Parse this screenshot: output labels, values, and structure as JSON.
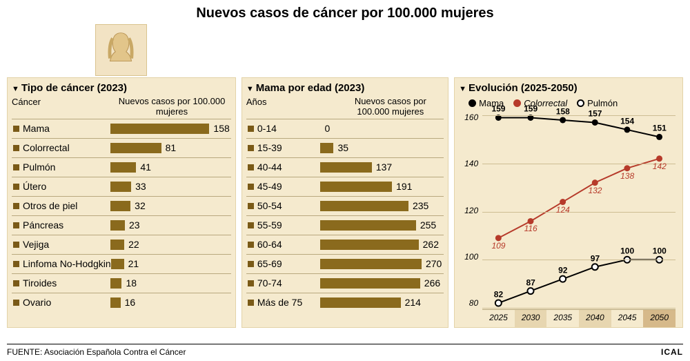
{
  "title": "Nuevos casos de cáncer por 100.000 mujeres",
  "colors": {
    "panel_bg": "#f5eace",
    "panel_border": "#e3d3a8",
    "row_border": "#b8a87e",
    "bar": "#8a6a1d",
    "bullet": "#7a5a17",
    "grid": "#cdbd93",
    "series_mama": "#000000",
    "series_colorrectal": "#b63a2a",
    "series_pulmon_border": "#000000",
    "series_pulmon_fill": "#ffffff"
  },
  "panel1": {
    "title": "Tipo de cáncer (2023)",
    "col_label": "Cáncer",
    "col_value": "Nuevos casos por 100.000 mujeres",
    "max": 158,
    "rows": [
      {
        "label": "Mama",
        "value": 158
      },
      {
        "label": "Colorrectal",
        "value": 81
      },
      {
        "label": "Pulmón",
        "value": 41
      },
      {
        "label": "Útero",
        "value": 33
      },
      {
        "label": "Otros de piel",
        "value": 32
      },
      {
        "label": "Páncreas",
        "value": 23
      },
      {
        "label": "Vejiga",
        "value": 22
      },
      {
        "label": "Linfoma No-Hodgkin",
        "value": 21
      },
      {
        "label": "Tiroides",
        "value": 18
      },
      {
        "label": "Ovario",
        "value": 16
      }
    ]
  },
  "panel2": {
    "title": "Mama por edad (2023)",
    "col_label": "Años",
    "col_value": "Nuevos casos por 100.000 mujeres",
    "max": 270,
    "rows": [
      {
        "label": "0-14",
        "value": 0
      },
      {
        "label": "15-39",
        "value": 35
      },
      {
        "label": "40-44",
        "value": 137
      },
      {
        "label": "45-49",
        "value": 191
      },
      {
        "label": "50-54",
        "value": 235
      },
      {
        "label": "55-59",
        "value": 255
      },
      {
        "label": "60-64",
        "value": 262
      },
      {
        "label": "65-69",
        "value": 270
      },
      {
        "label": "70-74",
        "value": 266
      },
      {
        "label": "Más de 75",
        "value": 214
      }
    ]
  },
  "panel3": {
    "title": "Evolución (2025-2050)",
    "legend": [
      {
        "label": "Mama",
        "style": "solid",
        "italic": false
      },
      {
        "label": "Colorrectal",
        "style": "red",
        "italic": true
      },
      {
        "label": "Pulmón",
        "style": "open",
        "italic": false
      }
    ],
    "ylim": [
      80,
      160
    ],
    "yticks": [
      80,
      100,
      120,
      140,
      160
    ],
    "years": [
      2025,
      2030,
      2035,
      2040,
      2045,
      2050
    ],
    "series": {
      "mama": {
        "values": [
          159,
          159,
          158,
          157,
          154,
          151
        ],
        "color": "#000000",
        "marker": "solid",
        "label_style": "bold"
      },
      "colorrectal": {
        "values": [
          109,
          116,
          124,
          132,
          138,
          142
        ],
        "color": "#b63a2a",
        "marker": "red",
        "label_style": "italic-red"
      },
      "pulmon": {
        "values": [
          82,
          87,
          92,
          97,
          100,
          100
        ],
        "color": "#000000",
        "marker": "open",
        "label_style": "bold"
      }
    }
  },
  "footer": {
    "source_prefix": "FUENTE: ",
    "source": "Asociación Española Contra el Cáncer",
    "credit": "ICAL"
  }
}
